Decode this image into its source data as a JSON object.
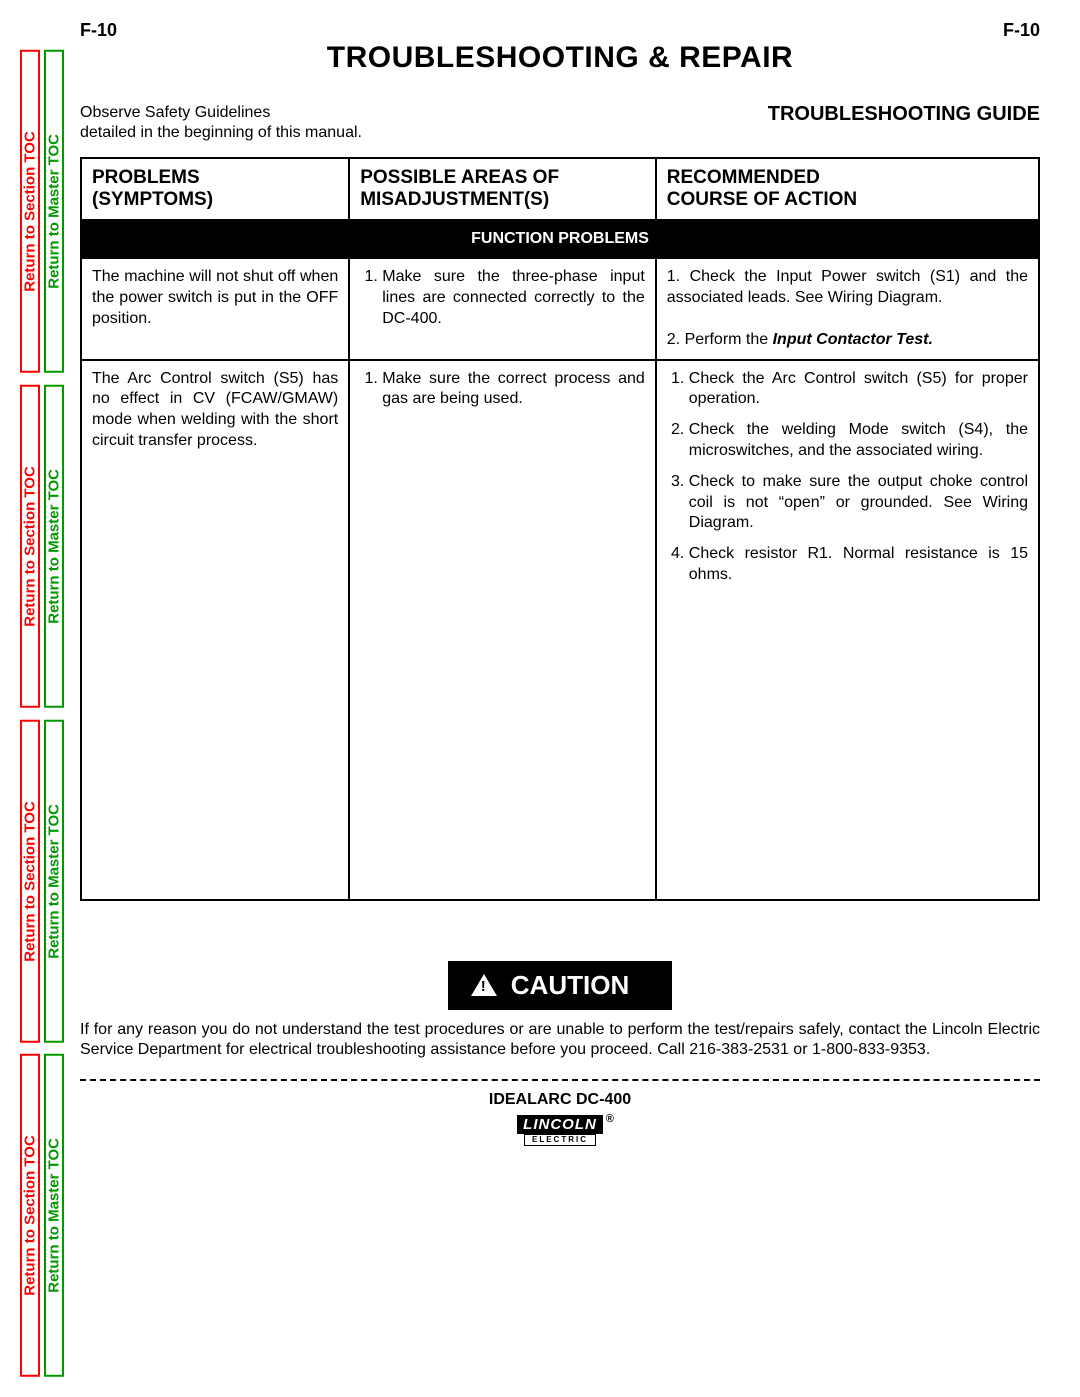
{
  "colors": {
    "section_tab": "#ff0000",
    "master_tab": "#009900",
    "band_bg": "#000000",
    "band_fg": "#ffffff",
    "page_bg": "#ffffff",
    "text": "#000000"
  },
  "header": {
    "page_code_left": "F-10",
    "page_code_right": "F-10",
    "title": "TROUBLESHOOTING & REPAIR"
  },
  "side_tabs": {
    "section_label": "Return to Section TOC",
    "master_label": "Return to Master TOC"
  },
  "subheader": {
    "observe_line1": "Observe Safety Guidelines",
    "observe_line2": "detailed in the beginning of this manual.",
    "guide_title": "TROUBLESHOOTING GUIDE"
  },
  "table": {
    "col_widths_pct": [
      28,
      32,
      40
    ],
    "headers": {
      "c1a": "PROBLEMS",
      "c1b": "(SYMPTOMS)",
      "c2a": "POSSIBLE AREAS OF",
      "c2b": "MISADJUSTMENT(S)",
      "c3a": "RECOMMENDED",
      "c3b": "COURSE OF ACTION"
    },
    "band_label": "FUNCTION PROBLEMS",
    "rows": [
      {
        "problem": "The machine will not shut off when the power switch is put in the OFF position.",
        "misadjust": [
          "Make sure the three-phase input lines are connected correctly to the DC-400."
        ],
        "action_html": "1. Check the Input Power switch (S1) and the associated leads. See Wiring Diagram.<br><br>2. Perform the <b><i>Input Contactor Test.</i></b>"
      },
      {
        "problem": "The Arc Control switch (S5) has no effect in CV (FCAW/GMAW) mode when welding with the short circuit transfer process.",
        "misadjust": [
          "Make sure the correct process and gas are being used."
        ],
        "action": [
          "Check the Arc Control switch (S5) for proper operation.",
          "Check the welding Mode switch (S4), the microswitches, and the associated wiring.",
          "Check to make sure the output choke control coil is not “open” or grounded. See Wiring Diagram.",
          "Check resistor R1. Normal resistance is 15 ohms."
        ]
      }
    ]
  },
  "caution": {
    "label": "CAUTION",
    "text": "If for any reason you do not understand the test procedures or are unable to perform the test/repairs safely, contact the Lincoln Electric Service Department for electrical troubleshooting assistance before you proceed.  Call 216-383-2531 or 1-800-833-9353."
  },
  "footer": {
    "model": "IDEALARC DC-400",
    "logo_top": "LINCOLN",
    "logo_reg": "®",
    "logo_bottom": "ELECTRIC"
  }
}
